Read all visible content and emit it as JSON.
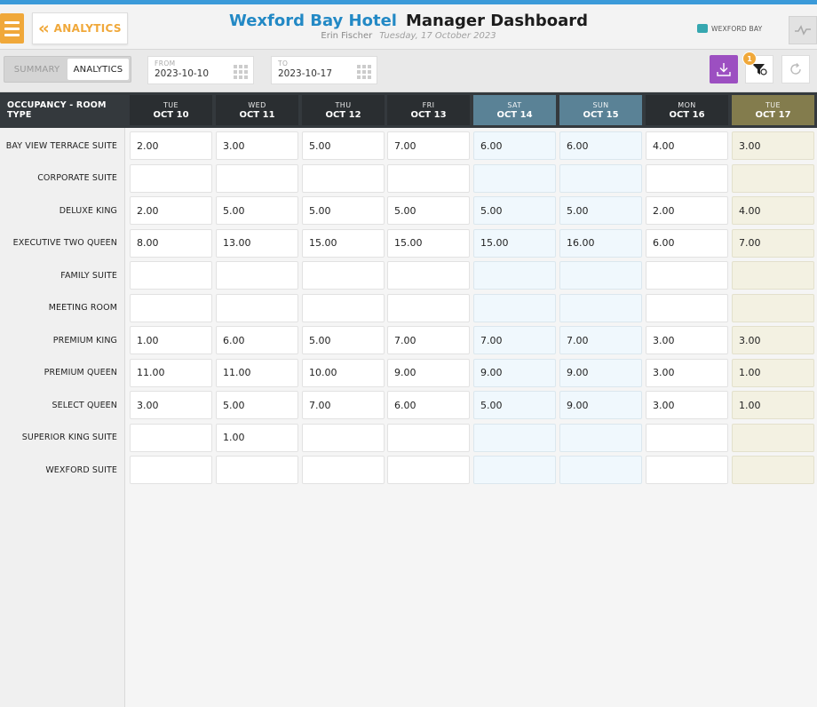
{
  "topbar": {
    "analytics_label": "ANALYTICS",
    "hotel_name": "Wexford Bay Hotel",
    "dashboard_title": "Manager Dashboard",
    "user": "Erin Fischer",
    "date": "Tuesday, 17 October 2023",
    "brand": "WEXFORD BAY",
    "accent": "#f0a83a",
    "title_color": "#2389c5"
  },
  "toolbar": {
    "tabs": [
      "SUMMARY",
      "ANALYTICS"
    ],
    "active_tab": "ANALYTICS",
    "from_caption": "FROM",
    "from_value": "2023-10-10",
    "to_caption": "TO",
    "to_value": "2023-10-17",
    "filter_count": "1",
    "download_color": "#9c4fc1"
  },
  "table": {
    "corner_label": "OCCUPANCY - ROOM TYPE",
    "columns": [
      {
        "dow": "TUE",
        "date": "OCT 10",
        "kind": "normal"
      },
      {
        "dow": "WED",
        "date": "OCT 11",
        "kind": "normal"
      },
      {
        "dow": "THU",
        "date": "OCT 12",
        "kind": "normal"
      },
      {
        "dow": "FRI",
        "date": "OCT 13",
        "kind": "normal"
      },
      {
        "dow": "SAT",
        "date": "OCT 14",
        "kind": "weekend"
      },
      {
        "dow": "SUN",
        "date": "OCT 15",
        "kind": "weekend"
      },
      {
        "dow": "MON",
        "date": "OCT 16",
        "kind": "normal"
      },
      {
        "dow": "TUE",
        "date": "OCT 17",
        "kind": "today"
      }
    ],
    "rows": [
      {
        "label": "BAY VIEW TERRACE SUITE",
        "values": [
          "2.00",
          "3.00",
          "5.00",
          "7.00",
          "6.00",
          "6.00",
          "4.00",
          "3.00"
        ]
      },
      {
        "label": "CORPORATE SUITE",
        "values": [
          "",
          "",
          "",
          "",
          "",
          "",
          "",
          ""
        ]
      },
      {
        "label": "DELUXE KING",
        "values": [
          "2.00",
          "5.00",
          "5.00",
          "5.00",
          "5.00",
          "5.00",
          "2.00",
          "4.00"
        ]
      },
      {
        "label": "EXECUTIVE TWO QUEEN",
        "values": [
          "8.00",
          "13.00",
          "15.00",
          "15.00",
          "15.00",
          "16.00",
          "6.00",
          "7.00"
        ]
      },
      {
        "label": "FAMILY SUITE",
        "values": [
          "",
          "",
          "",
          "",
          "",
          "",
          "",
          ""
        ]
      },
      {
        "label": "MEETING ROOM",
        "values": [
          "",
          "",
          "",
          "",
          "",
          "",
          "",
          ""
        ]
      },
      {
        "label": "PREMIUM KING",
        "values": [
          "1.00",
          "6.00",
          "5.00",
          "7.00",
          "7.00",
          "7.00",
          "3.00",
          "3.00"
        ]
      },
      {
        "label": "PREMIUM QUEEN",
        "values": [
          "11.00",
          "11.00",
          "10.00",
          "9.00",
          "9.00",
          "9.00",
          "3.00",
          "1.00"
        ]
      },
      {
        "label": "SELECT QUEEN",
        "values": [
          "3.00",
          "5.00",
          "7.00",
          "6.00",
          "5.00",
          "9.00",
          "3.00",
          "1.00"
        ]
      },
      {
        "label": "SUPERIOR KING SUITE",
        "values": [
          "",
          "1.00",
          "",
          "",
          "",
          "",
          "",
          ""
        ]
      },
      {
        "label": "WEXFORD SUITE",
        "values": [
          "",
          "",
          "",
          "",
          "",
          "",
          "",
          ""
        ]
      }
    ]
  }
}
